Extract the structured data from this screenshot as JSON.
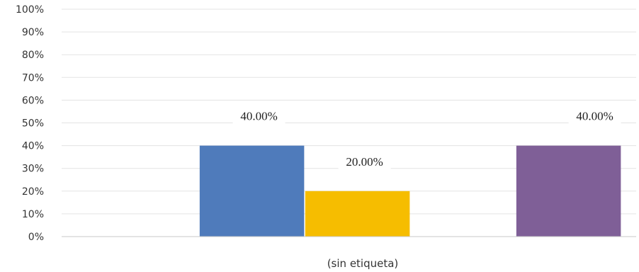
{
  "chart_data": {
    "type": "bar",
    "categories": [
      "(sin etiqueta)"
    ],
    "series": [
      {
        "color": "#4f7bbb",
        "values": [
          40
        ]
      },
      {
        "color": "#f6bd00",
        "values": [
          20
        ]
      },
      {
        "color": "#ffffff",
        "values": [
          0
        ]
      },
      {
        "color": "#7f5f97",
        "values": [
          40
        ]
      }
    ],
    "data_labels": [
      "40.00%",
      "20.00%",
      "",
      "40.00%"
    ],
    "ylim": [
      0,
      100
    ],
    "y_tick_labels": [
      "0%",
      "10%",
      "20%",
      "30%",
      "40%",
      "50%",
      "60%",
      "70%",
      "80%",
      "90%",
      "100%"
    ],
    "title": "",
    "xlabel": "",
    "ylabel": "",
    "grid": true,
    "legend": "none"
  }
}
